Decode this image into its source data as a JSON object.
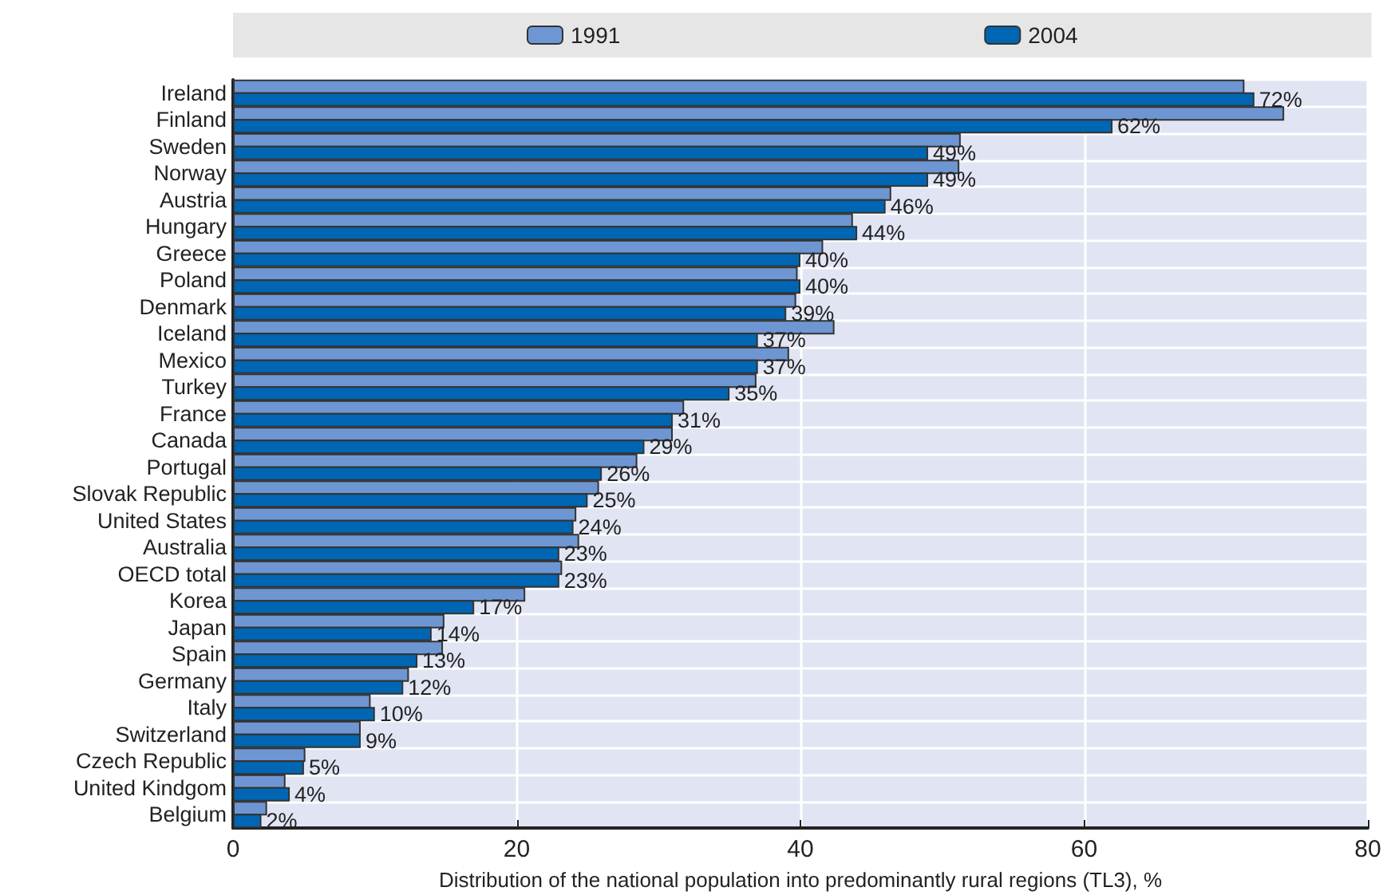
{
  "chart_data": {
    "type": "bar",
    "orientation": "horizontal",
    "xlabel": "Distribution of the national population into predominantly rural regions (TL3), %",
    "categories": [
      "Ireland",
      "Finland",
      "Sweden",
      "Norway",
      "Austria",
      "Hungary",
      "Greece",
      "Poland",
      "Denmark",
      "Iceland",
      "Mexico",
      "Turkey",
      "France",
      "Canada",
      "Portugal",
      "Slovak Republic",
      "United States",
      "Australia",
      "OECD total",
      "Korea",
      "Japan",
      "Spain",
      "Germany",
      "Italy",
      "Switzerland",
      "Czech Republic",
      "United Kindgom",
      "Belgium"
    ],
    "series": [
      {
        "name": "1991",
        "color": "#6e96d2",
        "values": [
          71.3,
          74.1,
          51.3,
          51.2,
          46.4,
          43.7,
          41.6,
          39.8,
          39.7,
          42.4,
          39.2,
          36.9,
          31.8,
          31.0,
          28.5,
          25.8,
          24.2,
          24.4,
          23.2,
          20.6,
          14.9,
          14.8,
          12.4,
          9.7,
          9.0,
          5.1,
          3.7,
          2.4
        ]
      },
      {
        "name": "2004",
        "color": "#0066b3",
        "values": [
          72,
          62,
          49,
          49,
          46,
          44,
          40,
          40,
          39,
          37,
          37,
          35,
          31,
          29,
          26,
          25,
          24,
          23,
          23,
          17,
          14,
          13,
          12,
          10,
          9,
          5,
          4,
          2
        ],
        "value_labels": [
          "72%",
          "62%",
          "49%",
          "49%",
          "46%",
          "44%",
          "40%",
          "40%",
          "39%",
          "37%",
          "37%",
          "35%",
          "31%",
          "29%",
          "26%",
          "25%",
          "24%",
          "23%",
          "23%",
          "17%",
          "14%",
          "13%",
          "12%",
          "10%",
          "9%",
          "5%",
          "4%",
          "2%"
        ]
      }
    ],
    "xlim": [
      0,
      80
    ],
    "xticks": [
      0,
      20,
      40,
      60,
      80
    ],
    "grid": true,
    "legend": "top"
  }
}
